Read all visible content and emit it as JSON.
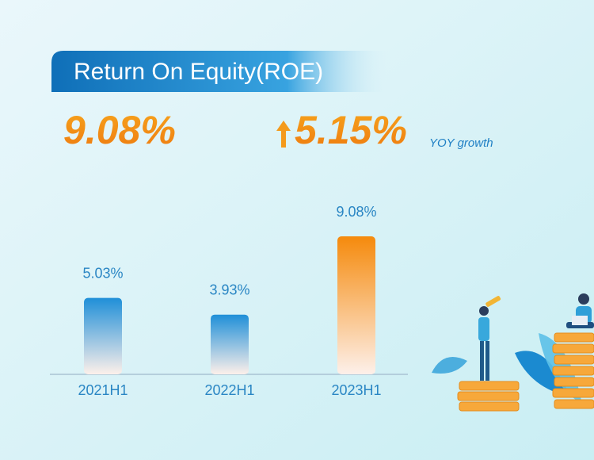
{
  "chart_data": {
    "type": "bar",
    "title": "Return On Equity(ROE)",
    "headline": "9.08%",
    "growth": "5.15%",
    "growth_label": "YOY growth",
    "categories": [
      "2021H1",
      "2022H1",
      "2023H1"
    ],
    "values": [
      5.03,
      3.93,
      9.08
    ],
    "value_labels": [
      "5.03%",
      "3.93%",
      "9.08%"
    ],
    "colors": [
      "#1f8fd8",
      "#1f8fd8",
      "#f58a0c"
    ],
    "ylim": [
      0,
      10
    ]
  }
}
